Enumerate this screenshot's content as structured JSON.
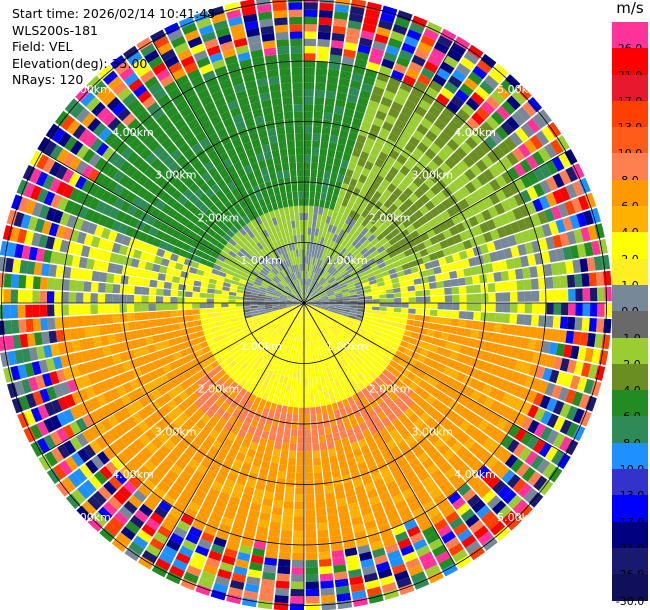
{
  "header": {
    "start_time": "Start time: 2026/02/14 10:41:48",
    "site": "WLS200s-181",
    "field": "Field: VEL",
    "elevation": "Elevation(deg): 35.00",
    "nrays": "NRays: 120"
  },
  "colorbar": {
    "unit": "m/s",
    "levels": [
      {
        "label": "26.0",
        "color": "#ff3399"
      },
      {
        "label": "21.0",
        "color": "#ff0000"
      },
      {
        "label": "17.0",
        "color": "#e8192c"
      },
      {
        "label": "13.0",
        "color": "#ff4000"
      },
      {
        "label": "10.0",
        "color": "#ff5c1a"
      },
      {
        "label": "8.0",
        "color": "#ff7f50"
      },
      {
        "label": "6.0",
        "color": "#ff9900"
      },
      {
        "label": "4.0",
        "color": "#ffb000"
      },
      {
        "label": "2.0",
        "color": "#ffff00"
      },
      {
        "label": "1.0",
        "color": "#ffee22"
      },
      {
        "label": "0.0",
        "color": "#778899"
      },
      {
        "label": "-1.0",
        "color": "#696969"
      },
      {
        "label": "-2.0",
        "color": "#9acd32"
      },
      {
        "label": "-4.0",
        "color": "#6b8e23"
      },
      {
        "label": "-6.0",
        "color": "#228b22"
      },
      {
        "label": "-8.0",
        "color": "#2e8b57"
      },
      {
        "label": "-10.0",
        "color": "#1e90ff"
      },
      {
        "label": "-13.0",
        "color": "#3333cc"
      },
      {
        "label": "-17.0",
        "color": "#0000ff"
      },
      {
        "label": "-21.0",
        "color": "#000080"
      },
      {
        "label": "-26.0",
        "color": "#191970"
      },
      {
        "label": "-30.0",
        "color": "#10105a"
      }
    ]
  },
  "map": {
    "n_rays": 120,
    "range_rings_km": [
      1,
      2,
      3,
      4,
      5
    ],
    "ring_labels": [
      "1.00km",
      "2.00km",
      "3.00km",
      "4.00km",
      "5.00km"
    ],
    "noise_palette": [
      "#ff3399",
      "#ff0000",
      "#ff4000",
      "#ff9900",
      "#ffff00",
      "#778899",
      "#9acd32",
      "#228b22",
      "#2e8b57",
      "#1e90ff",
      "#0000ff",
      "#000080",
      "#191970",
      "#ff7f50"
    ]
  }
}
